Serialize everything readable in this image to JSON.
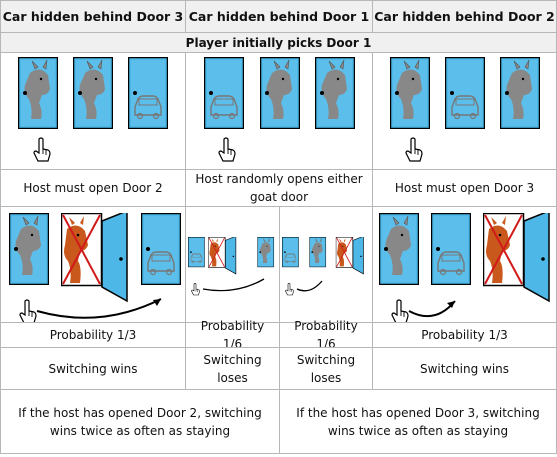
{
  "headers": [
    "Car hidden behind Door 3",
    "Car hidden behind Door 1",
    "Car hidden behind Door 2"
  ],
  "player_pick": "Player initially picks Door 1",
  "host_actions": [
    "Host must open Door 2",
    "Host randomly opens either goat door",
    "Host must open Door 3"
  ],
  "probabilities": [
    "Probability 1/3",
    "Probability 1/6",
    "Probability 1/6",
    "Probability 1/3"
  ],
  "outcomes": [
    "Switching wins",
    "Switching loses",
    "Switching loses",
    "Switching wins"
  ],
  "conclusions": [
    "If the host has opened Door 2, switching wins twice as often as staying",
    "If the host has opened Door 3, switching wins twice as often as staying"
  ],
  "colors": {
    "door_fill": "#4db8e8",
    "door_edge": "#000000",
    "goat": "#888888",
    "goat_revealed": "#c8581b",
    "cross": "#d21a1a",
    "header_bg": "#f0f0f0",
    "grid_line": "#b7b7b7"
  }
}
